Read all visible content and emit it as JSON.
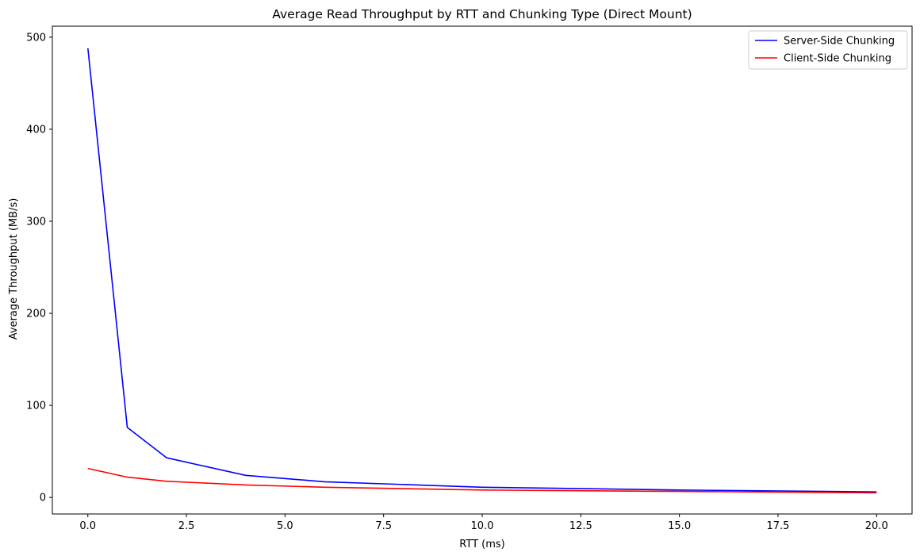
{
  "chart_data": {
    "type": "line",
    "title": "Average Read Throughput by RTT and Chunking Type (Direct Mount)",
    "xlabel": "RTT (ms)",
    "ylabel": "Average Throughput (MB/s)",
    "xlim": [
      -0.9,
      20.9
    ],
    "ylim": [
      -18,
      512
    ],
    "xticks": [
      0.0,
      2.5,
      5.0,
      7.5,
      10.0,
      12.5,
      15.0,
      17.5,
      20.0
    ],
    "xtick_labels": [
      "0.0",
      "2.5",
      "5.0",
      "7.5",
      "10.0",
      "12.5",
      "15.0",
      "17.5",
      "20.0"
    ],
    "yticks": [
      0,
      100,
      200,
      300,
      400,
      500
    ],
    "ytick_labels": [
      "0",
      "100",
      "200",
      "300",
      "400",
      "500"
    ],
    "grid": false,
    "legend_position": "top-right",
    "x": [
      0,
      1,
      2,
      4,
      6,
      10,
      15,
      20
    ],
    "series": [
      {
        "name": "Server-Side Chunking",
        "color": "#0000ff",
        "values": [
          488,
          76,
          43,
          24,
          17,
          11,
          8,
          6
        ]
      },
      {
        "name": "Client-Side Chunking",
        "color": "#ff0000",
        "values": [
          31.5,
          22,
          17.5,
          13.5,
          11,
          8,
          6.5,
          5
        ]
      }
    ]
  }
}
